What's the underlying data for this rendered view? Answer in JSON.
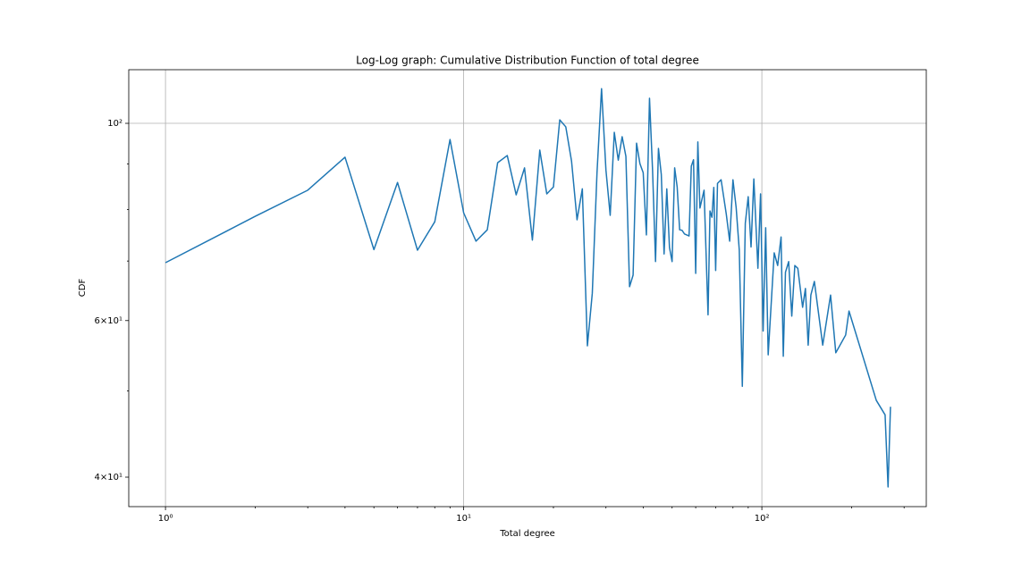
{
  "chart_data": {
    "type": "line",
    "title": "Log-Log graph: Cumulative Distribution Function of total degree",
    "xlabel": "Total degree",
    "ylabel": "CDF",
    "xscale": "log",
    "yscale": "log",
    "grid": true,
    "color": "#1f77b4",
    "xlim": [
      0.753,
      356
    ],
    "ylim": [
      37.06,
      114.9
    ],
    "xticks": [
      {
        "value": 1,
        "label": "10⁰"
      },
      {
        "value": 10,
        "label": "10¹"
      },
      {
        "value": 100,
        "label": "10²"
      }
    ],
    "xminorticks": [
      2,
      3,
      4,
      5,
      6,
      7,
      8,
      9,
      20,
      30,
      40,
      50,
      60,
      70,
      80,
      90,
      200,
      300
    ],
    "yticks": [
      {
        "value": 40,
        "label": "4×10¹"
      },
      {
        "value": 60,
        "label": "6×10¹"
      },
      {
        "value": 100,
        "label": "10²"
      }
    ],
    "yminorticks": [
      50,
      70,
      80,
      90
    ],
    "x": [
      1,
      2,
      3,
      4,
      5,
      6,
      7,
      8,
      9,
      10,
      11,
      12,
      13,
      14,
      15,
      16,
      17,
      18,
      19,
      20,
      21,
      22,
      23,
      24,
      25,
      26,
      27,
      28,
      29,
      30,
      31,
      32,
      33,
      34,
      35,
      36,
      37,
      38,
      39,
      40,
      41,
      42,
      43,
      44,
      45,
      46,
      47,
      48,
      49,
      50,
      51,
      52,
      53,
      54,
      55,
      57,
      58,
      59,
      60,
      61,
      62,
      64,
      66,
      67,
      68,
      69,
      70,
      71,
      73,
      76,
      78,
      80,
      82,
      84,
      86,
      88,
      90,
      92,
      94,
      97,
      99,
      101,
      103,
      105,
      110,
      113,
      116,
      118,
      120,
      123,
      126,
      129,
      132,
      137,
      140,
      143,
      146,
      150,
      160,
      170,
      177,
      191,
      196,
      242,
      259,
      265,
      270
    ],
    "values": [
      69.7,
      78.6,
      84.1,
      91.6,
      72.1,
      85.8,
      72.0,
      77.5,
      95.9,
      79.3,
      73.7,
      75.9,
      90.3,
      92.0,
      83.1,
      89.1,
      73.9,
      93.3,
      83.3,
      84.8,
      100.9,
      99.1,
      90.7,
      77.9,
      84.4,
      56.2,
      64.4,
      88.0,
      109.4,
      88.6,
      78.8,
      97.7,
      90.9,
      96.6,
      91.8,
      65.5,
      67.5,
      95.0,
      90.1,
      88.0,
      74.9,
      106.7,
      88.6,
      69.9,
      93.7,
      87.6,
      71.3,
      84.4,
      72.5,
      69.9,
      89.1,
      84.8,
      75.9,
      75.8,
      75.1,
      74.7,
      89.5,
      91.0,
      67.8,
      95.3,
      80.3,
      84.1,
      60.9,
      79.7,
      78.4,
      84.7,
      68.3,
      85.6,
      86.4,
      79.0,
      73.7,
      86.4,
      80.4,
      72.0,
      50.6,
      77.2,
      82.7,
      72.6,
      86.6,
      68.7,
      83.3,
      58.4,
      76.3,
      54.9,
      71.5,
      69.2,
      74.5,
      54.7,
      68.0,
      69.9,
      60.7,
      69.2,
      68.7,
      62.1,
      65.2,
      56.3,
      64.1,
      66.4,
      56.3,
      64.1,
      55.2,
      57.8,
      61.5,
      48.8,
      47.0,
      39.0,
      48.0
    ]
  }
}
